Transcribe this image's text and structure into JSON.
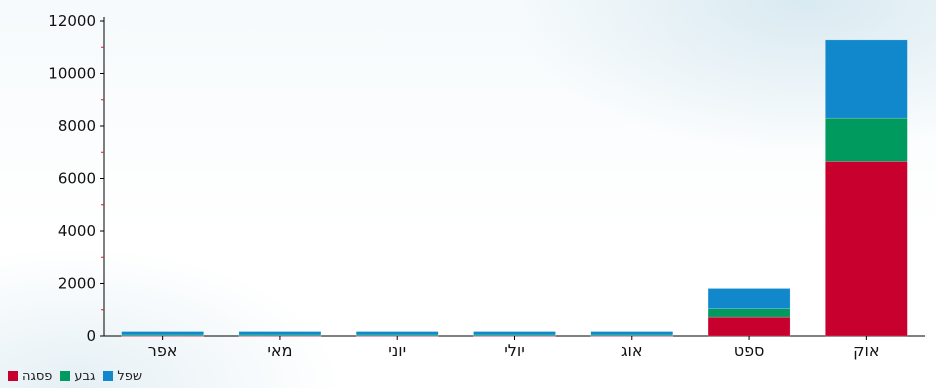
{
  "chart_data": {
    "type": "bar",
    "stacked": true,
    "categories": [
      "אפר",
      "מאי",
      "יוני",
      "יולי",
      "אוג",
      "ספט",
      "אוק"
    ],
    "series": [
      {
        "name": "פסגה",
        "color": "#c8002e",
        "values": [
          20,
          20,
          20,
          20,
          20,
          720,
          6650
        ]
      },
      {
        "name": "גבע",
        "color": "#009a5e",
        "values": [
          20,
          20,
          20,
          20,
          20,
          320,
          1650
        ]
      },
      {
        "name": "שפל",
        "color": "#1188cc",
        "values": [
          130,
          130,
          130,
          130,
          130,
          770,
          2980
        ]
      }
    ],
    "ylim": [
      0,
      12000
    ],
    "yticks": [
      "0",
      "2000",
      "4000",
      "6000",
      "8000",
      "10000",
      "12000"
    ],
    "grid": false,
    "legend_placement": "bottom-left"
  },
  "legend": {
    "items": [
      {
        "label": "שפל",
        "color": "#1188cc"
      },
      {
        "label": "גבע",
        "color": "#009a5e"
      },
      {
        "label": "פסגה",
        "color": "#c8002e"
      }
    ]
  }
}
